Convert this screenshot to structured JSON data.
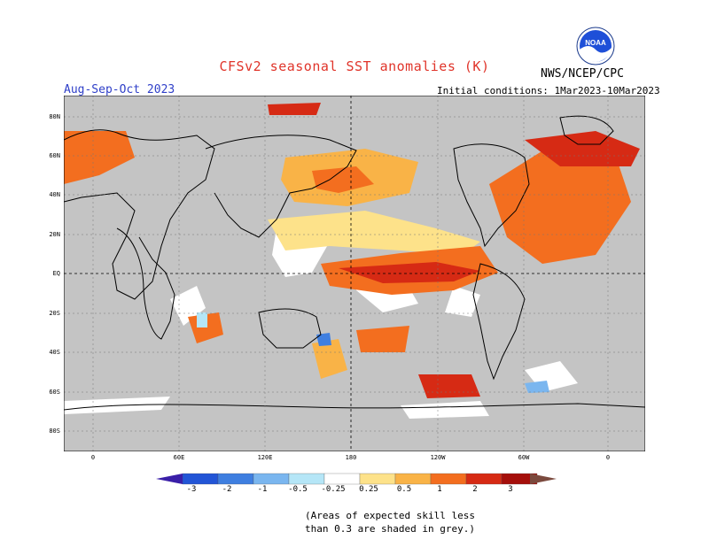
{
  "title": "CFSv2 seasonal SST anomalies (K)",
  "season": "Aug-Sep-Oct 2023",
  "agency": "NWS/NCEP/CPC",
  "init_conditions": "Initial conditions: 1Mar2023-10Mar2023",
  "logo_text": "NOAA",
  "map": {
    "lat_labels": [
      "80N",
      "60N",
      "40N",
      "20N",
      "EQ",
      "20S",
      "40S",
      "60S",
      "80S"
    ],
    "lon_labels": [
      "0",
      "60E",
      "120E",
      "180",
      "120W",
      "60W",
      "0"
    ],
    "land_color": "#c4c4c4",
    "ocean_color": "#ffffff",
    "no_skill_color": "#c4c4c4"
  },
  "colorbar": {
    "tick_labels": [
      "-3",
      "-2",
      "-1",
      "-0.5",
      "-0.25",
      "0.25",
      "0.5",
      "1",
      "2",
      "3"
    ],
    "colors": [
      "#3a1fa8",
      "#2255d6",
      "#3f7fe0",
      "#7ab6ef",
      "#b5e6f7",
      "#ffffff",
      "#fde28a",
      "#f9b347",
      "#f36e1f",
      "#d62a14",
      "#a50f0b",
      "#7b4a3e"
    ]
  },
  "note": [
    "(Areas of expected skill less",
    "than 0.3 are shaded in grey.)"
  ]
}
